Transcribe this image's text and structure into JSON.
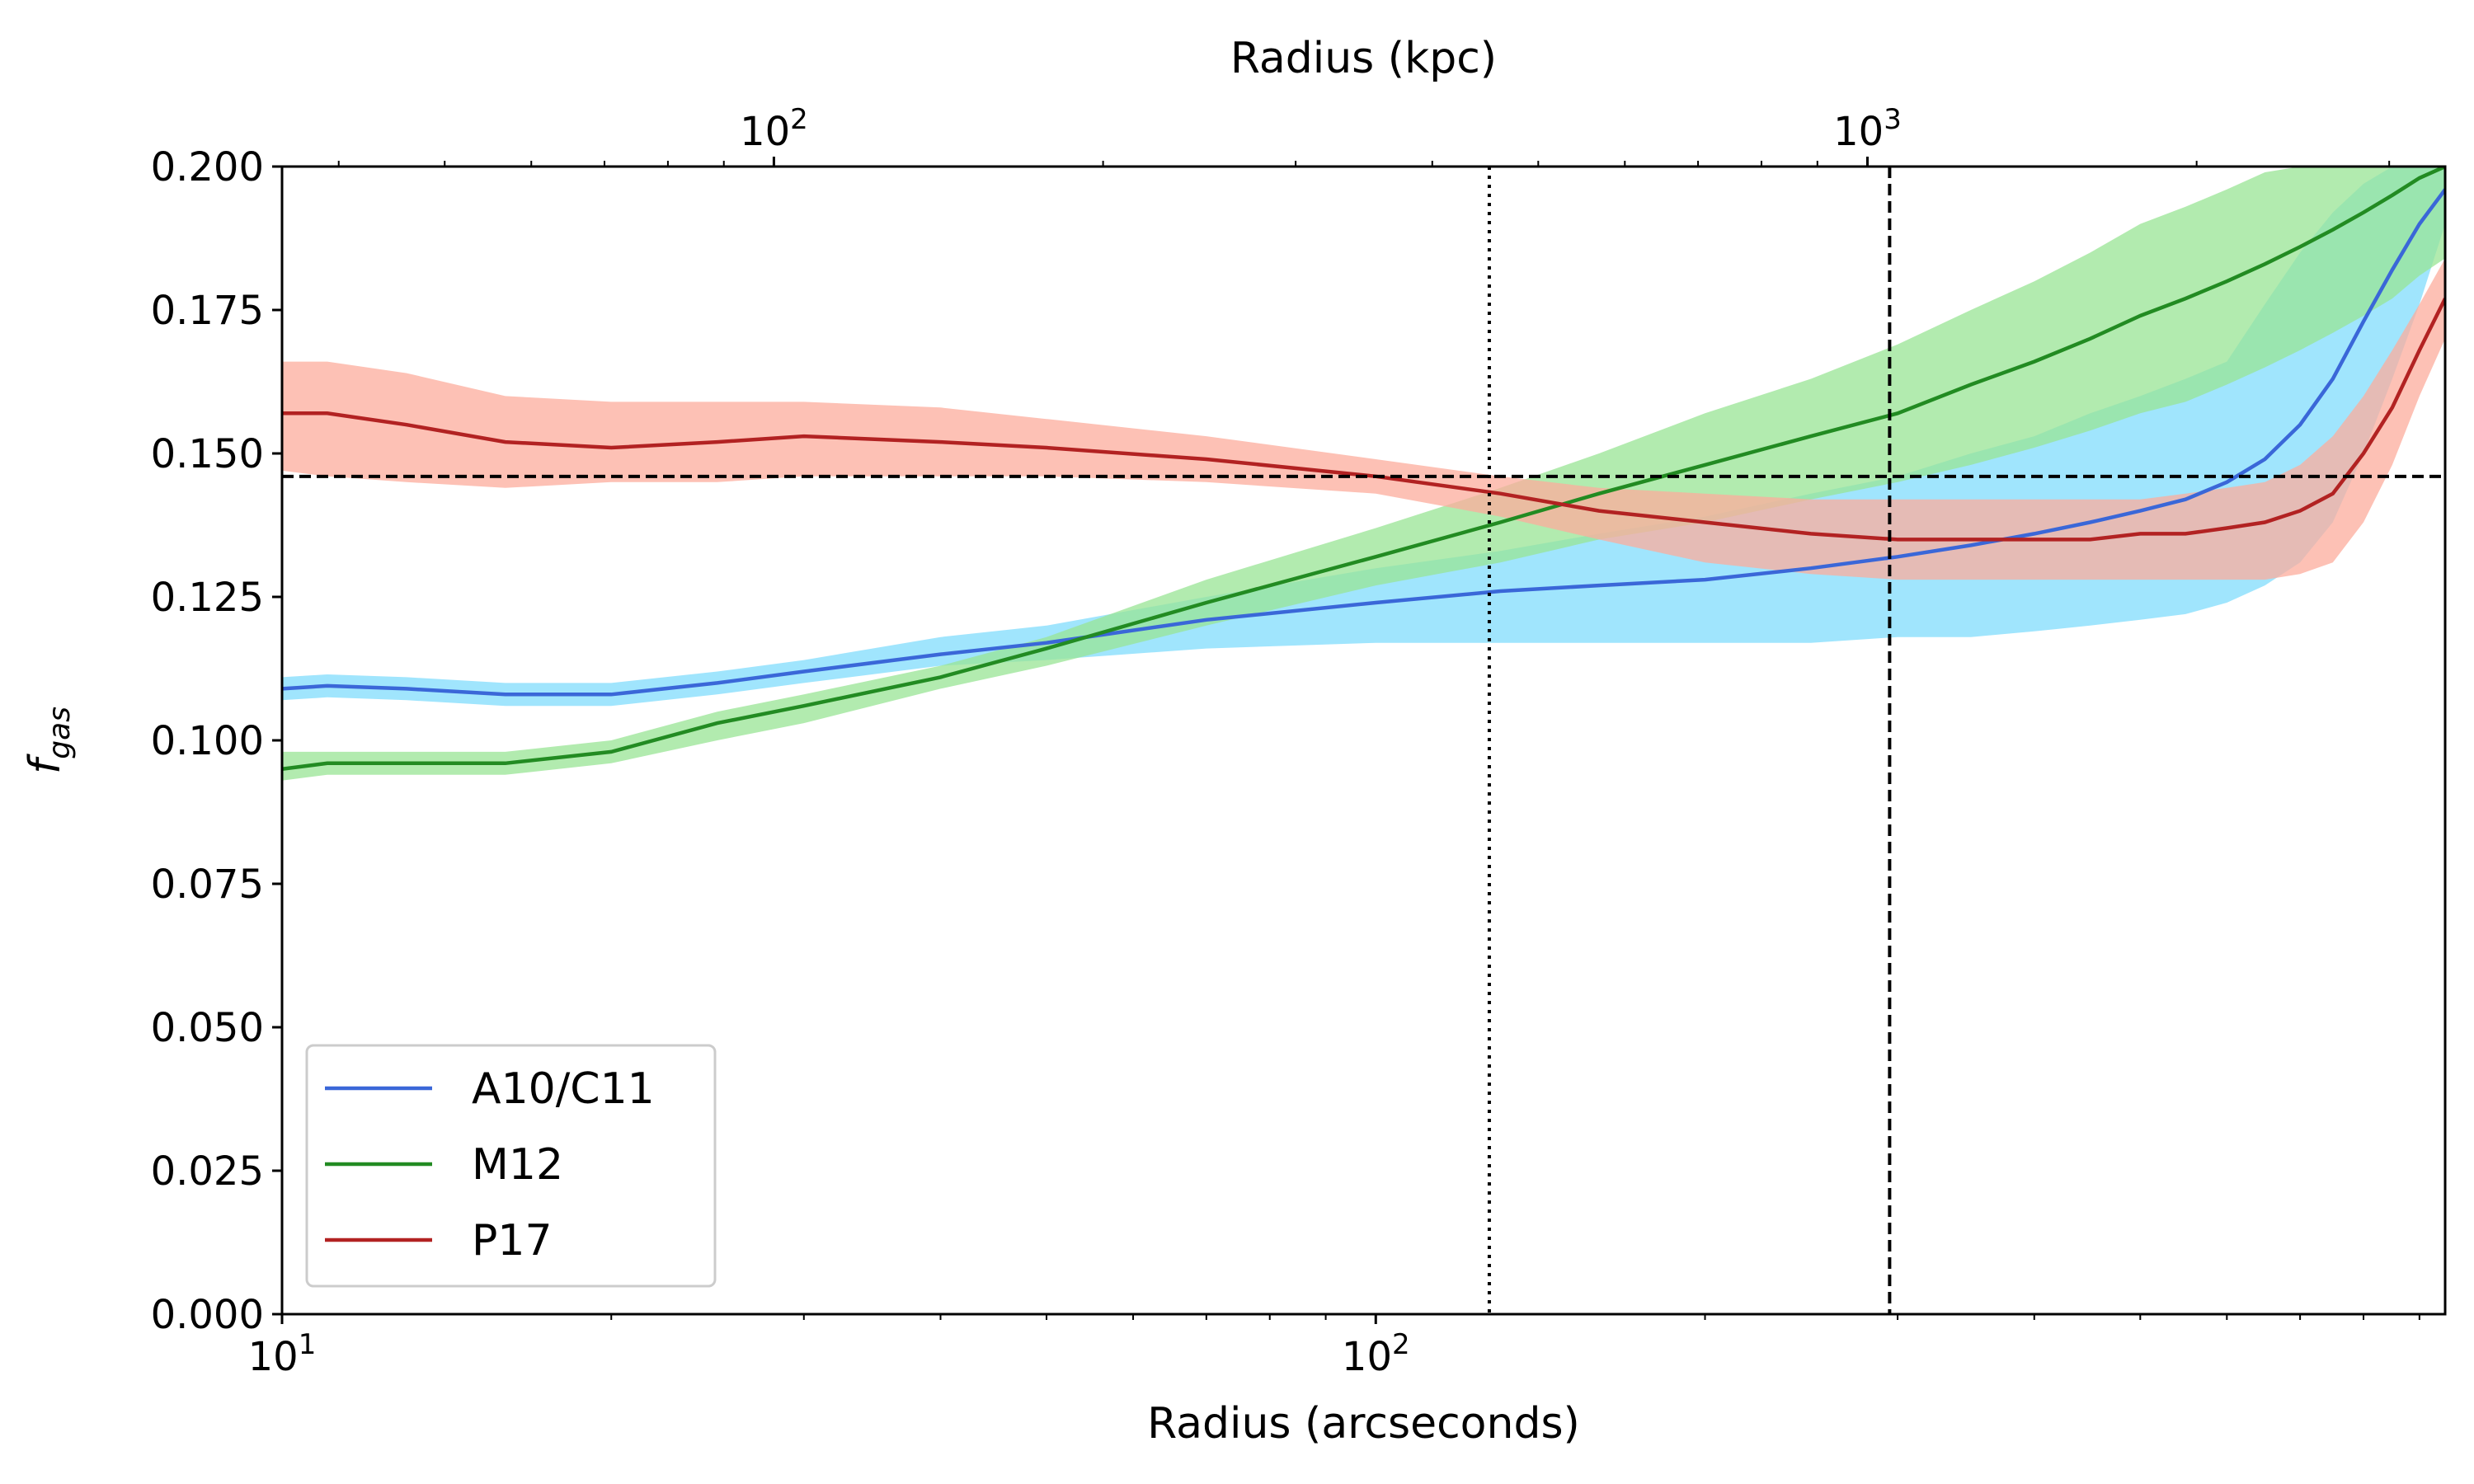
{
  "chart_data": {
    "type": "line",
    "xlabel": "Radius (arcseconds)",
    "x2label": "Radius (kpc)",
    "ylabel_base": "f",
    "ylabel_sub": "gas",
    "xscale": "log",
    "xlim": [
      10,
      950
    ],
    "x2lim": [
      35.5,
      3375
    ],
    "ylim": [
      0,
      0.2
    ],
    "yticks": [
      "0.000",
      "0.025",
      "0.050",
      "0.075",
      "0.100",
      "0.125",
      "0.150",
      "0.175",
      "0.200"
    ],
    "xtick_major": [
      {
        "value": 10,
        "base": "10",
        "exp": "1"
      },
      {
        "value": 100,
        "base": "10",
        "exp": "2"
      }
    ],
    "x2tick_major": [
      {
        "value": 100,
        "base": "10",
        "exp": "2"
      },
      {
        "value": 1000,
        "base": "10",
        "exp": "3"
      }
    ],
    "hline": {
      "y": 0.146,
      "style": "dashed"
    },
    "vlines": [
      {
        "x": 127,
        "style": "dotted"
      },
      {
        "x": 295,
        "style": "dashed"
      }
    ],
    "series": [
      {
        "name": "A10/C11",
        "line_color": "#3a67d8",
        "band_color": "#80dcfc",
        "x": [
          10,
          11,
          13,
          16,
          20,
          25,
          30,
          40,
          50,
          70,
          100,
          130,
          160,
          200,
          250,
          300,
          350,
          400,
          450,
          500,
          550,
          600,
          650,
          700,
          750,
          800,
          850,
          900,
          950
        ],
        "y": [
          0.109,
          0.1095,
          0.109,
          0.108,
          0.108,
          0.11,
          0.112,
          0.115,
          0.117,
          0.121,
          0.124,
          0.126,
          0.127,
          0.128,
          0.13,
          0.132,
          0.134,
          0.136,
          0.138,
          0.14,
          0.142,
          0.145,
          0.149,
          0.155,
          0.163,
          0.173,
          0.182,
          0.19,
          0.196
        ],
        "lower": [
          0.107,
          0.1075,
          0.107,
          0.106,
          0.106,
          0.108,
          0.11,
          0.113,
          0.114,
          0.116,
          0.117,
          0.117,
          0.117,
          0.117,
          0.117,
          0.118,
          0.118,
          0.119,
          0.12,
          0.121,
          0.122,
          0.124,
          0.127,
          0.131,
          0.138,
          0.15,
          0.163,
          0.176,
          0.19
        ],
        "upper": [
          0.111,
          0.1115,
          0.111,
          0.11,
          0.11,
          0.112,
          0.114,
          0.118,
          0.12,
          0.125,
          0.13,
          0.133,
          0.136,
          0.139,
          0.143,
          0.146,
          0.15,
          0.153,
          0.157,
          0.16,
          0.163,
          0.166,
          0.176,
          0.185,
          0.192,
          0.197,
          0.2,
          0.2,
          0.2
        ]
      },
      {
        "name": "M12",
        "line_color": "#228b22",
        "band_color": "#98e494",
        "x": [
          10,
          11,
          13,
          16,
          20,
          25,
          30,
          40,
          50,
          70,
          100,
          130,
          160,
          200,
          250,
          300,
          350,
          400,
          450,
          500,
          550,
          600,
          650,
          700,
          750,
          800,
          850,
          900,
          950
        ],
        "y": [
          0.095,
          0.096,
          0.096,
          0.096,
          0.098,
          0.103,
          0.106,
          0.111,
          0.116,
          0.124,
          0.132,
          0.138,
          0.143,
          0.148,
          0.153,
          0.157,
          0.162,
          0.166,
          0.17,
          0.174,
          0.177,
          0.18,
          0.183,
          0.186,
          0.189,
          0.192,
          0.195,
          0.198,
          0.2
        ],
        "lower": [
          0.093,
          0.094,
          0.094,
          0.094,
          0.096,
          0.1,
          0.103,
          0.109,
          0.113,
          0.12,
          0.127,
          0.131,
          0.135,
          0.138,
          0.142,
          0.145,
          0.148,
          0.151,
          0.154,
          0.157,
          0.159,
          0.162,
          0.165,
          0.168,
          0.171,
          0.174,
          0.177,
          0.181,
          0.184
        ],
        "upper": [
          0.098,
          0.098,
          0.098,
          0.098,
          0.1,
          0.105,
          0.108,
          0.113,
          0.118,
          0.128,
          0.137,
          0.144,
          0.15,
          0.157,
          0.163,
          0.169,
          0.175,
          0.18,
          0.185,
          0.19,
          0.193,
          0.196,
          0.199,
          0.2,
          0.2,
          0.2,
          0.2,
          0.2,
          0.2
        ]
      },
      {
        "name": "P17",
        "line_color": "#b22222",
        "band_color": "#fcac9c",
        "x": [
          10,
          11,
          13,
          16,
          20,
          25,
          30,
          40,
          50,
          70,
          100,
          130,
          160,
          200,
          250,
          300,
          350,
          400,
          450,
          500,
          550,
          600,
          650,
          700,
          750,
          800,
          850,
          900,
          950
        ],
        "y": [
          0.157,
          0.157,
          0.155,
          0.152,
          0.151,
          0.152,
          0.153,
          0.152,
          0.151,
          0.149,
          0.146,
          0.143,
          0.14,
          0.138,
          0.136,
          0.135,
          0.135,
          0.135,
          0.135,
          0.136,
          0.136,
          0.137,
          0.138,
          0.14,
          0.143,
          0.15,
          0.158,
          0.168,
          0.177
        ],
        "lower": [
          0.147,
          0.146,
          0.145,
          0.144,
          0.145,
          0.145,
          0.146,
          0.146,
          0.146,
          0.145,
          0.143,
          0.139,
          0.135,
          0.131,
          0.129,
          0.128,
          0.128,
          0.128,
          0.128,
          0.128,
          0.128,
          0.128,
          0.128,
          0.129,
          0.131,
          0.138,
          0.148,
          0.16,
          0.17
        ],
        "upper": [
          0.166,
          0.166,
          0.164,
          0.16,
          0.159,
          0.159,
          0.159,
          0.158,
          0.156,
          0.153,
          0.149,
          0.146,
          0.144,
          0.143,
          0.142,
          0.142,
          0.142,
          0.142,
          0.142,
          0.142,
          0.143,
          0.144,
          0.145,
          0.148,
          0.153,
          0.16,
          0.168,
          0.176,
          0.184
        ]
      }
    ]
  }
}
